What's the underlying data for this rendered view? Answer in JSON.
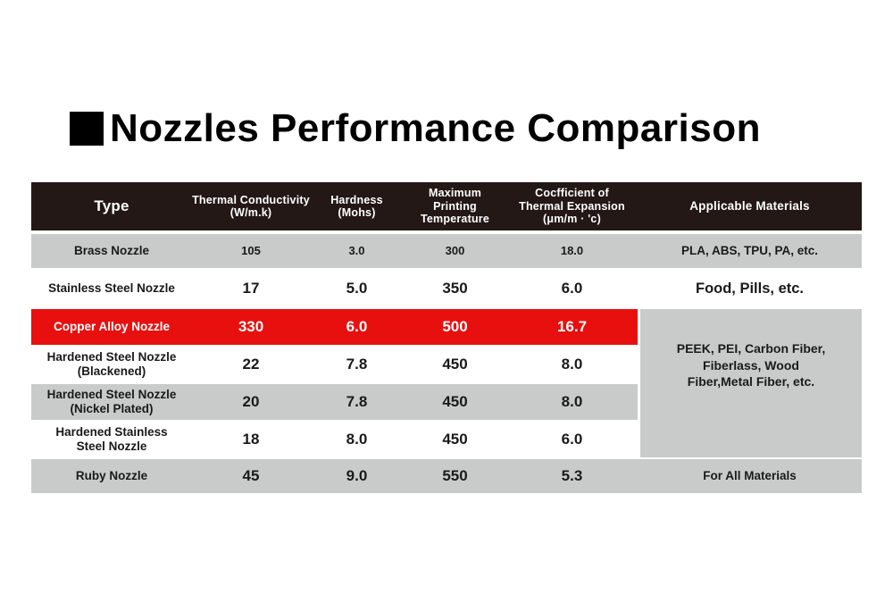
{
  "title": {
    "bullet": "black-square",
    "text": "Nozzles Performance Comparison"
  },
  "colors": {
    "header_bg": "#231815",
    "row_gray": "#c9caca",
    "highlight_red": "#e8100f",
    "text_light": "#ffffff"
  },
  "table": {
    "headers": [
      "Type",
      "Thermal Conductivity\n(W/m.k)",
      "Hardness\n(Mohs)",
      "Maximum\nPrinting\nTemperature",
      "Cocfficient of\nThermal Expansion\n(μm/m · 'c)",
      "Applicable Materials"
    ],
    "rows": [
      {
        "type": "Brass Nozzle",
        "thermal_conductivity": "105",
        "hardness": "3.0",
        "max_printing_temperature": "300",
        "coefficient_of_expansion": "18.0",
        "applicable_materials": "PLA, ABS, TPU, PA, etc."
      },
      {
        "type": "Stainless Steel Nozzle",
        "thermal_conductivity": "17",
        "hardness": "5.0",
        "max_printing_temperature": "350",
        "coefficient_of_expansion": "6.0",
        "applicable_materials": "Food, Pills, etc."
      },
      {
        "type": "Copper Alloy Nozzle",
        "thermal_conductivity": "330",
        "hardness": "6.0",
        "max_printing_temperature": "500",
        "coefficient_of_expansion": "16.7",
        "highlighted": true
      },
      {
        "type": "Hardened Steel Nozzle\n(Blackened)",
        "thermal_conductivity": "22",
        "hardness": "7.8",
        "max_printing_temperature": "450",
        "coefficient_of_expansion": "8.0"
      },
      {
        "type": "Hardened Steel Nozzle\n(Nickel Plated)",
        "thermal_conductivity": "20",
        "hardness": "7.8",
        "max_printing_temperature": "450",
        "coefficient_of_expansion": "8.0"
      },
      {
        "type": "Hardened Stainless\nSteel Nozzle",
        "thermal_conductivity": "18",
        "hardness": "8.0",
        "max_printing_temperature": "450",
        "coefficient_of_expansion": "6.0"
      },
      {
        "type": "Ruby Nozzle",
        "thermal_conductivity": "45",
        "hardness": "9.0",
        "max_printing_temperature": "550",
        "coefficient_of_expansion": "5.3",
        "applicable_materials": "For All Materials"
      }
    ],
    "merged_applicable_materials": "PEEK, PEI, Carbon Fiber,\nFiberlass, Wood\nFiber,Metal Fiber, etc."
  },
  "chart_data": {
    "type": "table",
    "title": "Nozzles Performance Comparison",
    "columns": [
      "Type",
      "Thermal Conductivity (W/m.k)",
      "Hardness (Mohs)",
      "Maximum Printing Temperature",
      "Cocfficient of Thermal Expansion (μm/m · 'c)",
      "Applicable Materials"
    ],
    "rows": [
      [
        "Brass Nozzle",
        105,
        3.0,
        300,
        18.0,
        "PLA, ABS, TPU, PA, etc."
      ],
      [
        "Stainless Steel Nozzle",
        17,
        5.0,
        350,
        6.0,
        "Food, Pills, etc."
      ],
      [
        "Copper Alloy Nozzle",
        330,
        6.0,
        500,
        16.7,
        "PEEK, PEI, Carbon Fiber, Fiberlass, Wood Fiber,Metal Fiber, etc."
      ],
      [
        "Hardened Steel Nozzle (Blackened)",
        22,
        7.8,
        450,
        8.0,
        "PEEK, PEI, Carbon Fiber, Fiberlass, Wood Fiber,Metal Fiber, etc."
      ],
      [
        "Hardened Steel Nozzle (Nickel Plated)",
        20,
        7.8,
        450,
        8.0,
        "PEEK, PEI, Carbon Fiber, Fiberlass, Wood Fiber,Metal Fiber, etc."
      ],
      [
        "Hardened Stainless Steel Nozzle",
        18,
        8.0,
        450,
        6.0,
        "PEEK, PEI, Carbon Fiber, Fiberlass, Wood Fiber,Metal Fiber, etc."
      ],
      [
        "Ruby Nozzle",
        45,
        9.0,
        550,
        5.3,
        "For All Materials"
      ]
    ],
    "highlighted_row": "Copper Alloy Nozzle",
    "layout_hints": {
      "merged_cell_rows": [
        2,
        3,
        4,
        5
      ],
      "merged_cell_column": "Applicable Materials"
    }
  }
}
